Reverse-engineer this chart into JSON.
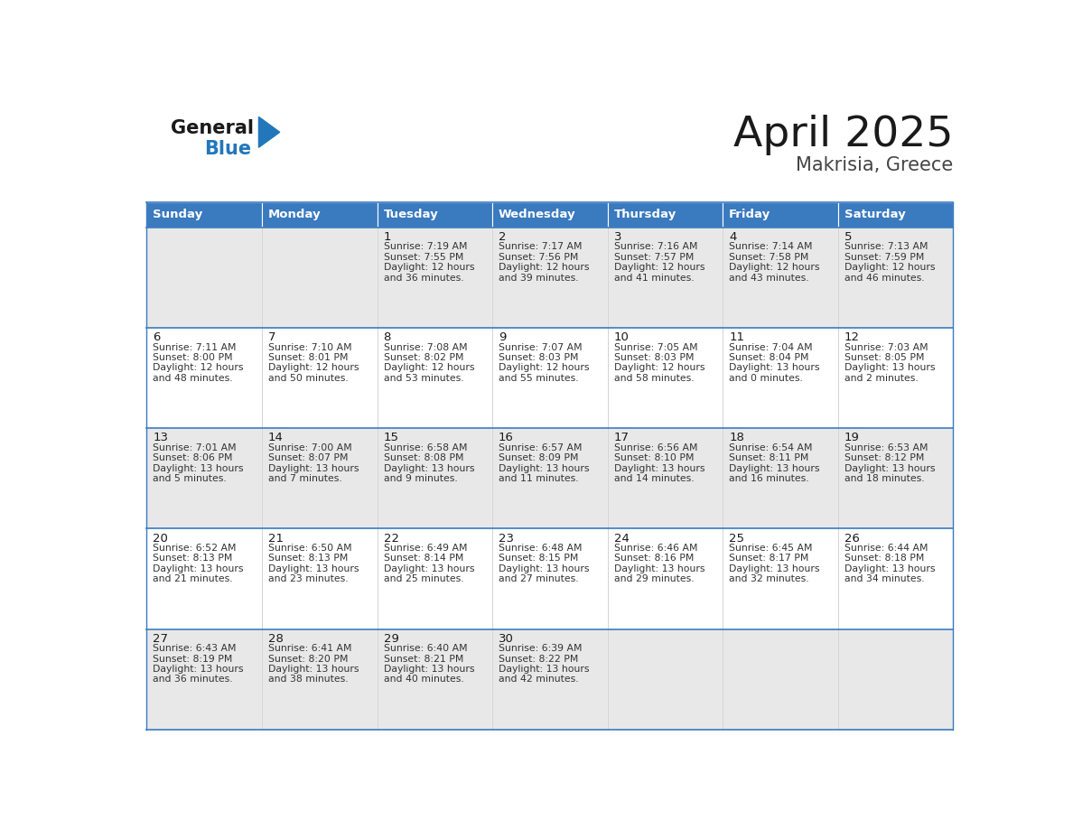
{
  "title": "April 2025",
  "subtitle": "Makrisia, Greece",
  "header_bg_color": "#3a7abf",
  "header_text_color": "#ffffff",
  "cell_bg_light": "#e8e8e8",
  "cell_bg_white": "#ffffff",
  "title_color": "#1a1a1a",
  "subtitle_color": "#444444",
  "day_number_color": "#1a1a1a",
  "cell_text_color": "#333333",
  "separator_color": "#3a7abf",
  "days_of_week": [
    "Sunday",
    "Monday",
    "Tuesday",
    "Wednesday",
    "Thursday",
    "Friday",
    "Saturday"
  ],
  "weeks": [
    [
      {
        "day": "",
        "lines": []
      },
      {
        "day": "",
        "lines": []
      },
      {
        "day": "1",
        "lines": [
          "Sunrise: 7:19 AM",
          "Sunset: 7:55 PM",
          "Daylight: 12 hours",
          "and 36 minutes."
        ]
      },
      {
        "day": "2",
        "lines": [
          "Sunrise: 7:17 AM",
          "Sunset: 7:56 PM",
          "Daylight: 12 hours",
          "and 39 minutes."
        ]
      },
      {
        "day": "3",
        "lines": [
          "Sunrise: 7:16 AM",
          "Sunset: 7:57 PM",
          "Daylight: 12 hours",
          "and 41 minutes."
        ]
      },
      {
        "day": "4",
        "lines": [
          "Sunrise: 7:14 AM",
          "Sunset: 7:58 PM",
          "Daylight: 12 hours",
          "and 43 minutes."
        ]
      },
      {
        "day": "5",
        "lines": [
          "Sunrise: 7:13 AM",
          "Sunset: 7:59 PM",
          "Daylight: 12 hours",
          "and 46 minutes."
        ]
      }
    ],
    [
      {
        "day": "6",
        "lines": [
          "Sunrise: 7:11 AM",
          "Sunset: 8:00 PM",
          "Daylight: 12 hours",
          "and 48 minutes."
        ]
      },
      {
        "day": "7",
        "lines": [
          "Sunrise: 7:10 AM",
          "Sunset: 8:01 PM",
          "Daylight: 12 hours",
          "and 50 minutes."
        ]
      },
      {
        "day": "8",
        "lines": [
          "Sunrise: 7:08 AM",
          "Sunset: 8:02 PM",
          "Daylight: 12 hours",
          "and 53 minutes."
        ]
      },
      {
        "day": "9",
        "lines": [
          "Sunrise: 7:07 AM",
          "Sunset: 8:03 PM",
          "Daylight: 12 hours",
          "and 55 minutes."
        ]
      },
      {
        "day": "10",
        "lines": [
          "Sunrise: 7:05 AM",
          "Sunset: 8:03 PM",
          "Daylight: 12 hours",
          "and 58 minutes."
        ]
      },
      {
        "day": "11",
        "lines": [
          "Sunrise: 7:04 AM",
          "Sunset: 8:04 PM",
          "Daylight: 13 hours",
          "and 0 minutes."
        ]
      },
      {
        "day": "12",
        "lines": [
          "Sunrise: 7:03 AM",
          "Sunset: 8:05 PM",
          "Daylight: 13 hours",
          "and 2 minutes."
        ]
      }
    ],
    [
      {
        "day": "13",
        "lines": [
          "Sunrise: 7:01 AM",
          "Sunset: 8:06 PM",
          "Daylight: 13 hours",
          "and 5 minutes."
        ]
      },
      {
        "day": "14",
        "lines": [
          "Sunrise: 7:00 AM",
          "Sunset: 8:07 PM",
          "Daylight: 13 hours",
          "and 7 minutes."
        ]
      },
      {
        "day": "15",
        "lines": [
          "Sunrise: 6:58 AM",
          "Sunset: 8:08 PM",
          "Daylight: 13 hours",
          "and 9 minutes."
        ]
      },
      {
        "day": "16",
        "lines": [
          "Sunrise: 6:57 AM",
          "Sunset: 8:09 PM",
          "Daylight: 13 hours",
          "and 11 minutes."
        ]
      },
      {
        "day": "17",
        "lines": [
          "Sunrise: 6:56 AM",
          "Sunset: 8:10 PM",
          "Daylight: 13 hours",
          "and 14 minutes."
        ]
      },
      {
        "day": "18",
        "lines": [
          "Sunrise: 6:54 AM",
          "Sunset: 8:11 PM",
          "Daylight: 13 hours",
          "and 16 minutes."
        ]
      },
      {
        "day": "19",
        "lines": [
          "Sunrise: 6:53 AM",
          "Sunset: 8:12 PM",
          "Daylight: 13 hours",
          "and 18 minutes."
        ]
      }
    ],
    [
      {
        "day": "20",
        "lines": [
          "Sunrise: 6:52 AM",
          "Sunset: 8:13 PM",
          "Daylight: 13 hours",
          "and 21 minutes."
        ]
      },
      {
        "day": "21",
        "lines": [
          "Sunrise: 6:50 AM",
          "Sunset: 8:13 PM",
          "Daylight: 13 hours",
          "and 23 minutes."
        ]
      },
      {
        "day": "22",
        "lines": [
          "Sunrise: 6:49 AM",
          "Sunset: 8:14 PM",
          "Daylight: 13 hours",
          "and 25 minutes."
        ]
      },
      {
        "day": "23",
        "lines": [
          "Sunrise: 6:48 AM",
          "Sunset: 8:15 PM",
          "Daylight: 13 hours",
          "and 27 minutes."
        ]
      },
      {
        "day": "24",
        "lines": [
          "Sunrise: 6:46 AM",
          "Sunset: 8:16 PM",
          "Daylight: 13 hours",
          "and 29 minutes."
        ]
      },
      {
        "day": "25",
        "lines": [
          "Sunrise: 6:45 AM",
          "Sunset: 8:17 PM",
          "Daylight: 13 hours",
          "and 32 minutes."
        ]
      },
      {
        "day": "26",
        "lines": [
          "Sunrise: 6:44 AM",
          "Sunset: 8:18 PM",
          "Daylight: 13 hours",
          "and 34 minutes."
        ]
      }
    ],
    [
      {
        "day": "27",
        "lines": [
          "Sunrise: 6:43 AM",
          "Sunset: 8:19 PM",
          "Daylight: 13 hours",
          "and 36 minutes."
        ]
      },
      {
        "day": "28",
        "lines": [
          "Sunrise: 6:41 AM",
          "Sunset: 8:20 PM",
          "Daylight: 13 hours",
          "and 38 minutes."
        ]
      },
      {
        "day": "29",
        "lines": [
          "Sunrise: 6:40 AM",
          "Sunset: 8:21 PM",
          "Daylight: 13 hours",
          "and 40 minutes."
        ]
      },
      {
        "day": "30",
        "lines": [
          "Sunrise: 6:39 AM",
          "Sunset: 8:22 PM",
          "Daylight: 13 hours",
          "and 42 minutes."
        ]
      },
      {
        "day": "",
        "lines": []
      },
      {
        "day": "",
        "lines": []
      },
      {
        "day": "",
        "lines": []
      }
    ]
  ],
  "logo_general_color": "#1a1a1a",
  "logo_blue_color": "#2277bb",
  "logo_triangle_color": "#2277bb"
}
